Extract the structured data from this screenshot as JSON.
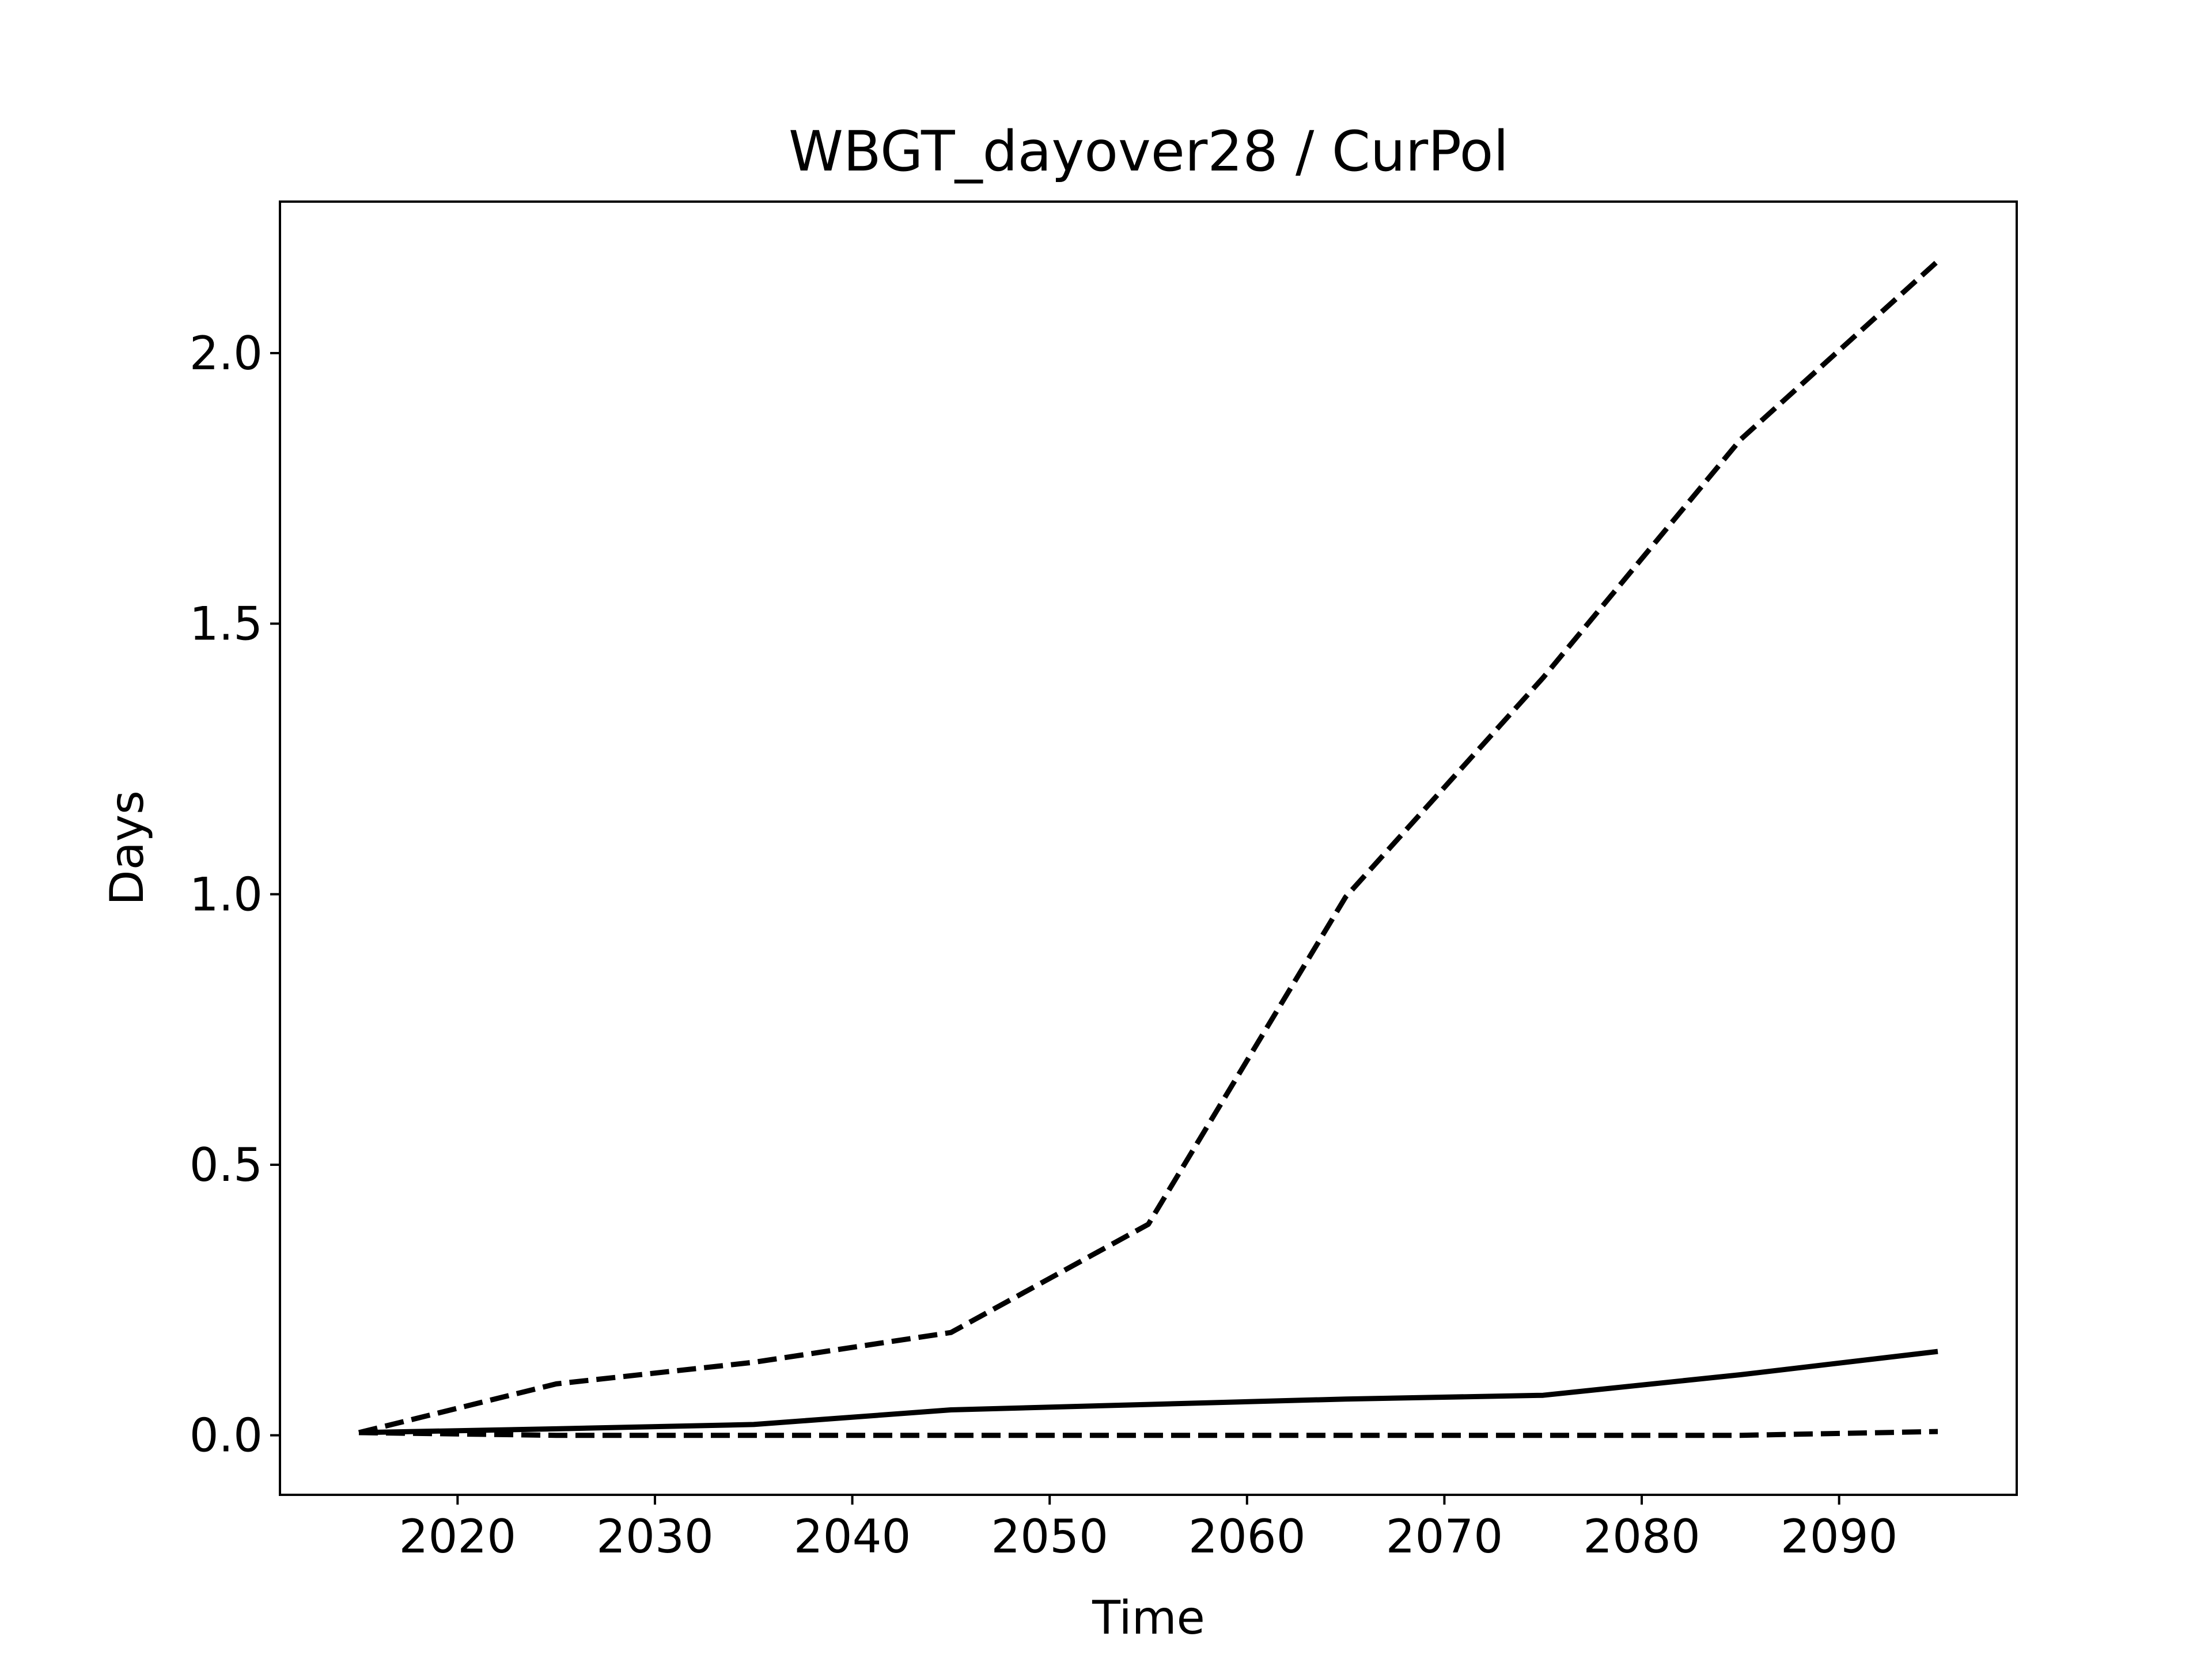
{
  "chart_data": {
    "type": "line",
    "title": "WBGT_dayover28 / CurPol",
    "xlabel": "Time",
    "ylabel": "Days",
    "xlim": [
      2011,
      2099
    ],
    "ylim": [
      -0.11,
      2.28
    ],
    "xticks": [
      "2020",
      "2030",
      "2040",
      "2050",
      "2060",
      "2070",
      "2080",
      "2090"
    ],
    "yticks": [
      "0.0",
      "0.5",
      "1.0",
      "1.5",
      "2.0"
    ],
    "grid": false,
    "legend": "none",
    "line_color": "#000000",
    "series": [
      {
        "style": "solid",
        "x": [
          2015,
          2025,
          2035,
          2045,
          2055,
          2065,
          2075,
          2085,
          2095
        ],
        "y": [
          0.005,
          0.012,
          0.02,
          0.047,
          0.057,
          0.067,
          0.074,
          0.112,
          0.155
        ]
      },
      {
        "style": "dashed",
        "x": [
          2015,
          2025,
          2035,
          2045,
          2055,
          2065,
          2075,
          2085,
          2095
        ],
        "y": [
          0.005,
          0.095,
          0.135,
          0.19,
          0.39,
          0.995,
          1.4,
          1.84,
          2.17
        ]
      },
      {
        "style": "dashed",
        "x": [
          2015,
          2025,
          2035,
          2045,
          2055,
          2065,
          2075,
          2085,
          2095
        ],
        "y": [
          0.005,
          0.0,
          0.0,
          0.0,
          0.0,
          0.0,
          0.0,
          0.0,
          0.007
        ]
      }
    ]
  }
}
